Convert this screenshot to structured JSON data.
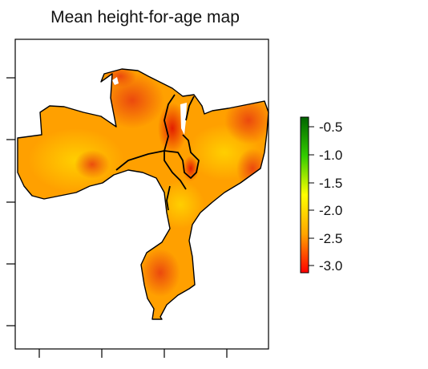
{
  "title": "Mean height-for-age map",
  "legend": {
    "ticks": [
      "-0.5",
      "-1.0",
      "-1.5",
      "-2.0",
      "-2.5",
      "-3.0"
    ],
    "range": [
      -3.1,
      -0.4
    ],
    "colors": {
      "high": "#006400",
      "mid_high": "#33cc00",
      "mid": "#ffff00",
      "mid_low": "#ffa500",
      "low": "#ff0000"
    }
  },
  "map_colors": {
    "base": "#ffa000",
    "light": "#ffc800",
    "dark": "#f06010",
    "darkest": "#e02010",
    "lake": "#ffffff",
    "border": "#000000"
  }
}
